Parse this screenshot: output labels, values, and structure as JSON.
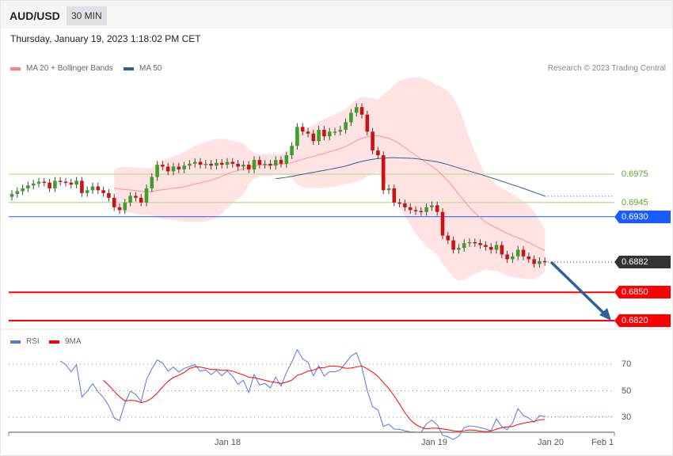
{
  "header": {
    "symbol": "AUD/USD",
    "timeframe": "30 MIN"
  },
  "timestamp": "Thursday, January 19, 2023 1:18:02 PM CET",
  "legend": {
    "ma20": "MA 20 + Bollinger Bands",
    "ma50": "MA 50",
    "rsi": "RSI",
    "ma9": "9MA"
  },
  "credit": "Research © 2023 Trading Central",
  "levels": {
    "r1": "0.6975",
    "r2": "0.6945",
    "pivot": "0.6930",
    "last": "0.6882",
    "s1": "0.6850",
    "s2": "0.6820"
  },
  "colors": {
    "ma20": "#ff8080",
    "ma50": "#2f5f9e",
    "pivot": "#1a5cff",
    "support": "#ff0000",
    "resist": "#5ea62d",
    "last": "#333333",
    "rsi": "#5577dd",
    "ma9": "#ff0000"
  },
  "rsi_axis": [
    "70",
    "50",
    "30"
  ],
  "x_axis": [
    "Jan 18",
    "Jan 19",
    "Jan 20",
    "Feb 1"
  ],
  "chart_data": {
    "type": "candlestick",
    "closes": [
      0.6954,
      0.6957,
      0.696,
      0.6963,
      0.6965,
      0.6967,
      0.6966,
      0.696,
      0.6968,
      0.6967,
      0.6966,
      0.6964,
      0.6968,
      0.6955,
      0.6958,
      0.6962,
      0.6958,
      0.6955,
      0.695,
      0.694,
      0.6937,
      0.6945,
      0.6952,
      0.695,
      0.6945,
      0.696,
      0.6972,
      0.6985,
      0.6983,
      0.6978,
      0.6983,
      0.698,
      0.6984,
      0.6986,
      0.6988,
      0.6985,
      0.6986,
      0.6984,
      0.6987,
      0.6985,
      0.6988,
      0.6986,
      0.6983,
      0.6985,
      0.698,
      0.699,
      0.6985,
      0.6986,
      0.6984,
      0.699,
      0.6986,
      0.6995,
      0.7005,
      0.7025,
      0.702,
      0.7018,
      0.701,
      0.7022,
      0.7015,
      0.702,
      0.702,
      0.7022,
      0.703,
      0.704,
      0.7046,
      0.7038,
      0.702,
      0.7,
      0.6995,
      0.6958,
      0.696,
      0.6945,
      0.6944,
      0.694,
      0.6937,
      0.6936,
      0.6935,
      0.694,
      0.6942,
      0.6935,
      0.691,
      0.6905,
      0.6895,
      0.6897,
      0.6902,
      0.6903,
      0.6902,
      0.69,
      0.6898,
      0.6895,
      0.69,
      0.689,
      0.6885,
      0.6888,
      0.6895,
      0.6888,
      0.6885,
      0.688,
      0.6883,
      0.6882
    ],
    "target": 0.682
  }
}
